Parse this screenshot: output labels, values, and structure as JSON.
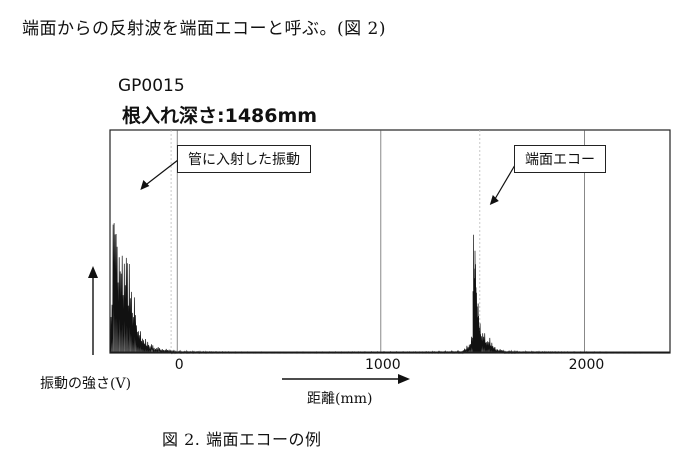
{
  "intro_text": "端面からの反射波を端面エコーと呼ぶ。(図 2)",
  "caption": "図 2. 端面エコーの例",
  "chart_data": {
    "type": "line",
    "title": "GP0015",
    "subtitle": "根入れ深さ:1486mm",
    "xlabel": "距離(mm)",
    "ylabel": "振動の強さ(V)",
    "x_ticks": [
      0,
      1000,
      2000
    ],
    "xlim": [
      -330,
      2420
    ],
    "grid": true,
    "annotations": [
      {
        "text": "管に入射した振動",
        "target_x": -230
      },
      {
        "text": "端面エコー",
        "target_x": 1486
      }
    ],
    "series": [
      {
        "x": [
          -330,
          -320,
          -310,
          -300,
          -290,
          -280,
          -270,
          -260,
          -250,
          -240,
          -230,
          -220,
          -210,
          -200,
          -190,
          -180,
          -170,
          -160,
          -150,
          -140,
          -120,
          -100,
          -80,
          -60,
          -30,
          0,
          100,
          300,
          600,
          900,
          1200,
          1400,
          1440,
          1450,
          1455,
          1460,
          1465,
          1470,
          1475,
          1480,
          1485,
          1490,
          1500,
          1510,
          1520,
          1530,
          1545,
          1560,
          1580,
          1620,
          1700,
          1900,
          2200,
          2420
        ],
        "y": [
          0.02,
          0.35,
          1.0,
          0.8,
          0.45,
          0.62,
          0.5,
          0.42,
          0.55,
          0.38,
          0.45,
          0.25,
          0.3,
          0.18,
          0.14,
          0.11,
          0.08,
          0.07,
          0.06,
          0.05,
          0.04,
          0.03,
          0.025,
          0.02,
          0.015,
          0.01,
          0.008,
          0.005,
          0.005,
          0.006,
          0.006,
          0.01,
          0.05,
          0.12,
          0.55,
          0.62,
          0.5,
          0.38,
          0.28,
          0.2,
          0.16,
          0.12,
          0.13,
          0.1,
          0.06,
          0.08,
          0.05,
          0.03,
          0.02,
          0.01,
          0.008,
          0.006,
          0.005,
          0.004
        ]
      }
    ]
  }
}
